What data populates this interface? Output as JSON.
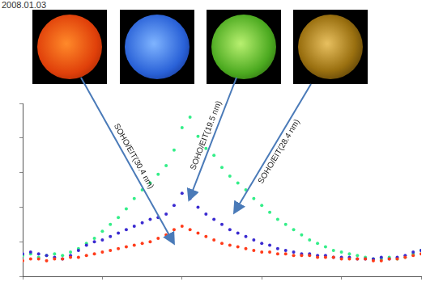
{
  "header": {
    "date": "2008.01.03"
  },
  "chart_data": {
    "type": "scatter",
    "x": [
      0,
      2,
      4,
      6,
      8,
      10,
      12,
      14,
      16,
      18,
      20,
      22,
      24,
      26,
      28,
      30,
      32,
      34,
      36,
      38,
      40,
      42,
      44,
      46,
      48,
      50,
      52,
      54,
      56,
      58,
      60,
      62,
      64,
      66,
      68,
      70,
      72,
      74,
      76,
      78,
      80,
      82,
      84,
      86,
      88,
      90,
      92,
      94,
      96,
      98,
      100
    ],
    "series": [
      {
        "name": "SOHO/EIT(30.4 nm)",
        "color": "#ff3b1a",
        "marker": "circle",
        "values": [
          0.9,
          1.0,
          1.0,
          0.9,
          1.0,
          1.0,
          1.1,
          1.1,
          1.2,
          1.3,
          1.4,
          1.5,
          1.6,
          1.7,
          1.8,
          1.9,
          2.0,
          2.2,
          2.4,
          2.7,
          2.9,
          2.7,
          2.5,
          2.3,
          2.1,
          1.9,
          1.8,
          1.7,
          1.6,
          1.5,
          1.4,
          1.4,
          1.3,
          1.3,
          1.2,
          1.2,
          1.2,
          1.1,
          1.1,
          1.1,
          1.0,
          1.0,
          1.0,
          1.0,
          0.9,
          0.9,
          1.0,
          1.0,
          1.1,
          1.2,
          1.3
        ]
      },
      {
        "name": "SOHO/EIT(19.5 nm)",
        "color": "#3a2ad0",
        "marker": "circle",
        "values": [
          1.3,
          1.4,
          1.3,
          1.2,
          1.1,
          1.0,
          1.2,
          1.5,
          1.8,
          2.0,
          2.1,
          2.3,
          2.5,
          2.7,
          2.9,
          3.1,
          3.3,
          3.4,
          3.6,
          4.1,
          4.8,
          4.5,
          4.0,
          3.6,
          3.3,
          3.0,
          2.7,
          2.5,
          2.3,
          2.1,
          1.9,
          1.8,
          1.6,
          1.5,
          1.4,
          1.3,
          1.3,
          1.2,
          1.2,
          1.1,
          1.1,
          1.1,
          1.0,
          1.0,
          1.0,
          1.1,
          1.0,
          1.1,
          1.2,
          1.4,
          1.5
        ]
      },
      {
        "name": "SOHO/EIT(28.4 nm)",
        "color": "#33ee88",
        "marker": "circle",
        "values": [
          1.2,
          1.3,
          1.1,
          1.2,
          1.3,
          1.2,
          1.4,
          1.6,
          1.9,
          2.2,
          2.6,
          3.0,
          3.4,
          3.9,
          4.5,
          5.0,
          5.4,
          5.9,
          6.4,
          7.3,
          8.6,
          9.2,
          8.1,
          7.4,
          7.0,
          6.3,
          5.8,
          5.4,
          5.0,
          4.5,
          4.1,
          3.7,
          3.3,
          3.0,
          2.7,
          2.4,
          2.1,
          1.9,
          1.7,
          1.5,
          1.4,
          1.3,
          1.2,
          1.1,
          1.0,
          1.0,
          1.1,
          1.0,
          1.1,
          1.3,
          1.5
        ]
      }
    ],
    "xlim": [
      0,
      100
    ],
    "xticks": [
      0,
      20,
      40,
      60,
      80,
      100
    ],
    "ylim": [
      0,
      10
    ],
    "yticks": [
      0,
      2,
      4,
      6,
      8,
      10
    ],
    "grid": false,
    "tick_labels": false
  }
}
